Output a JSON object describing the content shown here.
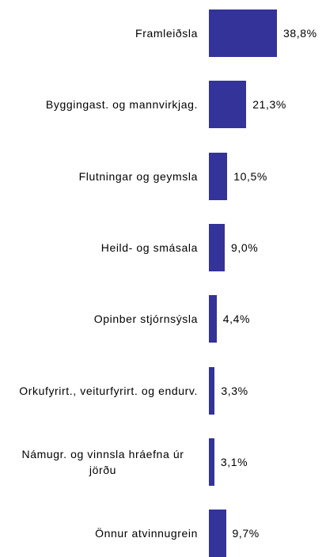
{
  "chart_data": {
    "type": "bar",
    "orientation": "horizontal",
    "color": "#333399",
    "categories": [
      "Framleiðsla",
      "Byggingast. og mannvirkjag.",
      "Flutningar og geymsla",
      "Heild- og smásala",
      "Opinber stjórnsýsla",
      "Orkufyrirt., veiturfyrirt. og endurv.",
      "Námugr. og vinnsla hráefna úr jörðu",
      "Önnur atvinnugrein"
    ],
    "values": [
      38.8,
      21.3,
      10.5,
      9.0,
      4.4,
      3.3,
      3.1,
      9.7
    ],
    "value_labels": [
      "38,8%",
      "21,3%",
      "10,5%",
      "9,0%",
      "4,4%",
      "3,3%",
      "3,1%",
      "9,7%"
    ]
  }
}
